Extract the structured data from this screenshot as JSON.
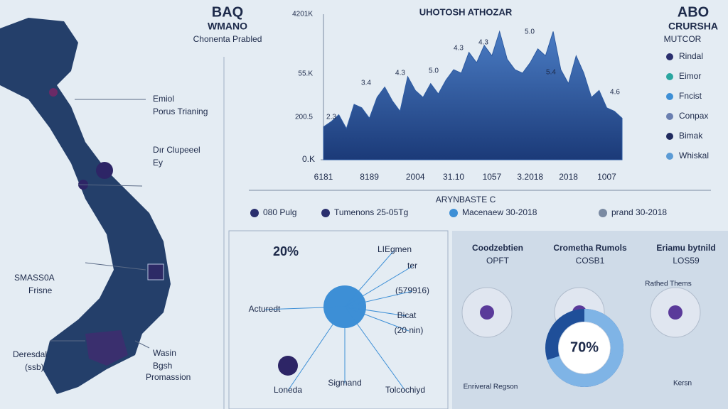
{
  "header": {
    "title": "BAQ",
    "subtitle": "WMANO",
    "caption": "Chonenta Prabled"
  },
  "map": {
    "labels": [
      "Emiol",
      "Porus Trianing",
      "Dır Clupeeel",
      "Ey",
      "SMASS0A",
      "Frisne",
      "Deresdal",
      "(ssb)",
      "Wasin",
      "Bgsh",
      "Promassion"
    ]
  },
  "chart_data": {
    "type": "area",
    "title": "UHOTOSH ATHOZAR",
    "x_title": "ARYNBASTE C",
    "categories": [
      "6181",
      null,
      null,
      null,
      null,
      null,
      "8189",
      null,
      null,
      null,
      null,
      null,
      "2004",
      null,
      null,
      null,
      null,
      "31.10",
      null,
      null,
      null,
      null,
      "1057",
      null,
      null,
      null,
      null,
      "3.2018",
      null,
      null,
      null,
      null,
      "2018",
      null,
      null,
      null,
      null,
      "1007",
      null,
      null
    ],
    "values": [
      95,
      110,
      130,
      90,
      160,
      150,
      120,
      180,
      210,
      170,
      140,
      240,
      200,
      180,
      220,
      190,
      230,
      260,
      250,
      310,
      280,
      330,
      300,
      370,
      290,
      260,
      250,
      280,
      320,
      300,
      370,
      260,
      220,
      300,
      250,
      180,
      200,
      150,
      140,
      120
    ],
    "color": "#2d5aa0",
    "ylim": [
      0,
      420
    ],
    "yticks": [
      {
        "value": 0,
        "label": "0.K"
      }
    ],
    "annotations": [
      "4201K",
      "55.K",
      "200.5",
      "4.3",
      "3.4",
      "5.0",
      "4.3",
      "4.3",
      "5.0",
      "5.4",
      "2.3",
      "4.6"
    ]
  },
  "legend_row": [
    "080 Pulg",
    "Tumenons 25-05Tg",
    "Macenaew 30-2018",
    "prand 30-2018"
  ],
  "side_legend": {
    "title": "ABO",
    "subtitle": "CRURSHA",
    "caption": "MUTCOR",
    "items": [
      {
        "name": "Rindal",
        "color": "#2a2f6e"
      },
      {
        "name": "Eimor",
        "color": "#2aa6a0"
      },
      {
        "name": "Fncist",
        "color": "#3d8fd6"
      },
      {
        "name": "Conpax",
        "color": "#6a7fb0"
      },
      {
        "name": "Bimak",
        "color": "#1f2a5e"
      },
      {
        "name": "Whiskal",
        "color": "#5b9bd5"
      }
    ]
  },
  "hub": {
    "percent": "20%",
    "labels": [
      "LIEgmen",
      "ter",
      "(579916)",
      "Bicat",
      "(20 nin)",
      "Acturedt",
      "Loneda",
      "Sigmand",
      "Tolcochiyd"
    ]
  },
  "panel": {
    "headers": [
      "Coodzebtien",
      "Crometha Rumols",
      "Eriamu bytnild"
    ],
    "codes": [
      "OPFT",
      "COSB1",
      "LOS59"
    ],
    "notes": [
      "Rathed Thems",
      "Enriveral Regson",
      "Kersn"
    ],
    "donut": {
      "value": 70,
      "value_label": "70%"
    }
  }
}
